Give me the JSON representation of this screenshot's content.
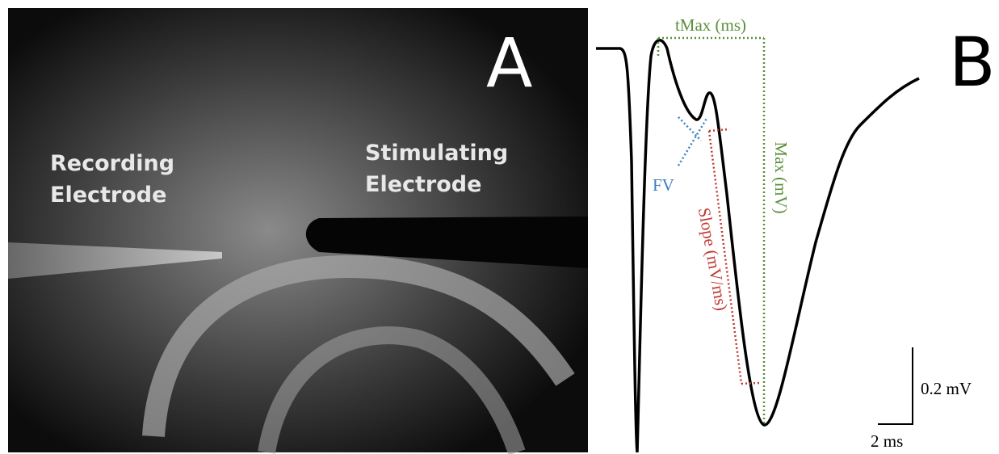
{
  "panel_a": {
    "letter": "A",
    "recording_label": [
      "Recording",
      "Electrode"
    ],
    "stimulating_label": [
      "Stimulating",
      "Electrode"
    ]
  },
  "panel_b": {
    "letter": "B",
    "tmax_label": "tMax (ms)",
    "max_label": "Max (mV)",
    "slope_label": "Slope (mV/ms)",
    "fv_label": "FV",
    "scale_y_label": "0.2 mV",
    "scale_x_label": "2 ms"
  }
}
